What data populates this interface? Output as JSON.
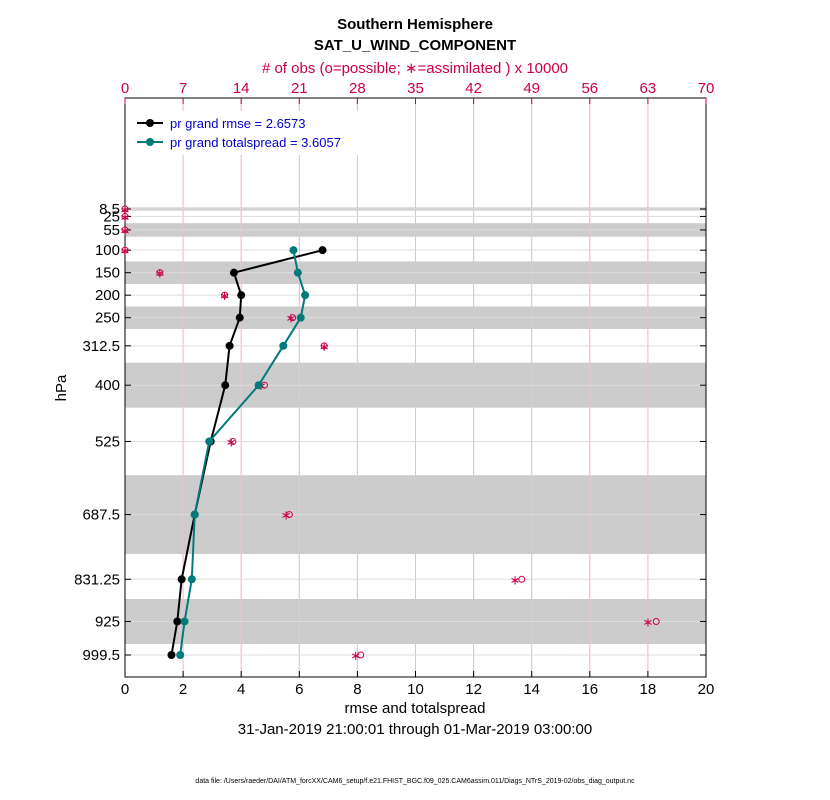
{
  "chart_data": {
    "type": "line",
    "title": "Southern Hemisphere",
    "subtitle": "SAT_U_WIND_COMPONENT",
    "top_axis_label": "# of obs (o=possible; ∗=assimilated ) x 10000",
    "xlabel": "rmse and totalspread",
    "ylabel": "hPa",
    "date_range": "31-Jan-2019 21:00:01 through 01-Mar-2019 03:00:00",
    "footer": "data file: /Users/raeder/DAI/ATM_forcXX/CAM6_setup/f.e21.FHIST_BGC.f09_025.CAM6assim.011/Diags_NTrS_2019-02/obs_diag_output.nc",
    "xlim": [
      0,
      20
    ],
    "x_ticks": [
      "0",
      "2",
      "4",
      "6",
      "8",
      "10",
      "12",
      "14",
      "16",
      "18",
      "20"
    ],
    "top_xlim": [
      0,
      70
    ],
    "top_ticks": [
      "0",
      "7",
      "14",
      "21",
      "28",
      "35",
      "42",
      "49",
      "56",
      "63",
      "70"
    ],
    "y_levels": [
      8.5,
      25,
      55,
      100,
      150,
      200,
      250,
      312.5,
      400,
      525,
      687.5,
      831.25,
      925,
      999.5
    ],
    "y_tick_labels": [
      "8.5",
      "25",
      "55",
      "100",
      "150",
      "200",
      "250",
      "312.5",
      "400",
      "525",
      "687.5",
      "831.25",
      "925",
      "999.5"
    ],
    "grid": true,
    "legend_position": "top-left",
    "level_bands": [
      [
        5,
        12
      ],
      [
        40,
        70
      ],
      [
        125,
        175
      ],
      [
        225,
        275
      ],
      [
        350,
        450
      ],
      [
        600,
        775
      ],
      [
        875,
        975
      ]
    ],
    "series": [
      {
        "name": "grand rmse = 2.6573",
        "legend_prefix": "pr",
        "color": "#000000",
        "points": [
          {
            "level": 100,
            "value": 6.8
          },
          {
            "level": 150,
            "value": 3.75
          },
          {
            "level": 200,
            "value": 4.0
          },
          {
            "level": 250,
            "value": 3.95
          },
          {
            "level": 312.5,
            "value": 3.6
          },
          {
            "level": 400,
            "value": 3.45
          },
          {
            "level": 525,
            "value": 2.95
          },
          {
            "level": 687.5,
            "value": 2.4
          },
          {
            "level": 831.25,
            "value": 1.95
          },
          {
            "level": 925,
            "value": 1.8
          },
          {
            "level": 999.5,
            "value": 1.6
          }
        ]
      },
      {
        "name": "grand totalspread = 3.6057",
        "legend_prefix": "pr",
        "color": "#007a7a",
        "points": [
          {
            "level": 100,
            "value": 5.8
          },
          {
            "level": 150,
            "value": 5.95
          },
          {
            "level": 200,
            "value": 6.2
          },
          {
            "level": 250,
            "value": 6.05
          },
          {
            "level": 312.5,
            "value": 5.45
          },
          {
            "level": 400,
            "value": 4.6
          },
          {
            "level": 525,
            "value": 2.9
          },
          {
            "level": 687.5,
            "value": 2.4
          },
          {
            "level": 831.25,
            "value": 2.3
          },
          {
            "level": 925,
            "value": 2.05
          },
          {
            "level": 999.5,
            "value": 1.9
          }
        ]
      }
    ],
    "obs_counts": {
      "color": "#cc0044",
      "possible": [
        {
          "level": 8.5,
          "value": 0
        },
        {
          "level": 25,
          "value": 0
        },
        {
          "level": 55,
          "value": 0
        },
        {
          "level": 100,
          "value": 0
        },
        {
          "level": 150,
          "value": 4.2
        },
        {
          "level": 200,
          "value": 12.0
        },
        {
          "level": 250,
          "value": 20.2
        },
        {
          "level": 312.5,
          "value": 24.0
        },
        {
          "level": 400,
          "value": 16.8
        },
        {
          "level": 525,
          "value": 13.0
        },
        {
          "level": 687.5,
          "value": 19.8
        },
        {
          "level": 831.25,
          "value": 47.8
        },
        {
          "level": 925,
          "value": 64.0
        },
        {
          "level": 999.5,
          "value": 28.4
        }
      ],
      "assimilated": [
        {
          "level": 8.5,
          "value": 0
        },
        {
          "level": 25,
          "value": 0
        },
        {
          "level": 55,
          "value": 0
        },
        {
          "level": 100,
          "value": 0
        },
        {
          "level": 150,
          "value": 4.2
        },
        {
          "level": 200,
          "value": 12.0
        },
        {
          "level": 250,
          "value": 20.0
        },
        {
          "level": 312.5,
          "value": 24.0
        },
        {
          "level": 400,
          "value": 16.4
        },
        {
          "level": 525,
          "value": 12.8
        },
        {
          "level": 687.5,
          "value": 19.4
        },
        {
          "level": 831.25,
          "value": 47.0
        },
        {
          "level": 925,
          "value": 63.0
        },
        {
          "level": 999.5,
          "value": 27.8
        }
      ]
    }
  }
}
